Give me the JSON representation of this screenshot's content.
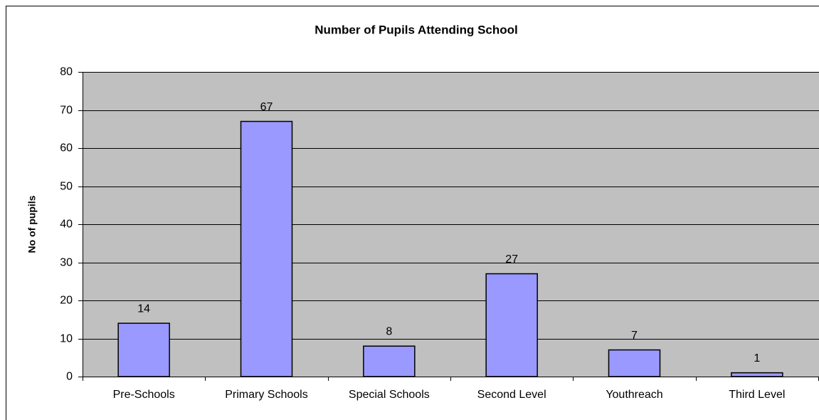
{
  "chart_data": {
    "type": "bar",
    "title": "Number of Pupils Attending School",
    "y_label": "No of pupils",
    "categories": [
      "Pre-Schools",
      "Primary Schools",
      "Special Schools",
      "Second Level",
      "Youthreach",
      "Third Level"
    ],
    "values": [
      14,
      67,
      8,
      27,
      7,
      1
    ],
    "color": "#9999ff",
    "ylim": [
      0,
      80
    ],
    "yticks": [
      0,
      10,
      20,
      30,
      40,
      50,
      60,
      70,
      80
    ],
    "grid": true
  }
}
